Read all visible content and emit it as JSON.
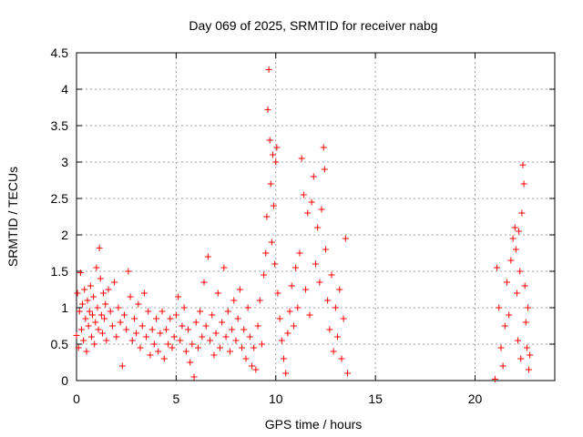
{
  "chart_data": {
    "type": "scatter",
    "title": "Day 069 of 2025, SRMTID for receiver nabg",
    "xlabel": "GPS time / hours",
    "ylabel": "SRMTID / TECUs",
    "xlim": [
      0,
      24
    ],
    "ylim": [
      0,
      4.5
    ],
    "xticks": [
      0,
      5,
      10,
      15,
      20
    ],
    "yticks": [
      0,
      0.5,
      1,
      1.5,
      2,
      2.5,
      3,
      3.5,
      4,
      4.5
    ],
    "grid": true,
    "marker": "plus",
    "color": "#ff0000",
    "series": [
      {
        "values": [
          [
            0.0,
            0.62
          ],
          [
            0.05,
            1.2
          ],
          [
            0.1,
            0.45
          ],
          [
            0.15,
            0.95
          ],
          [
            0.2,
            1.48
          ],
          [
            0.25,
            0.7
          ],
          [
            0.3,
            1.05
          ],
          [
            0.35,
            0.55
          ],
          [
            0.4,
            1.25
          ],
          [
            0.45,
            0.85
          ],
          [
            0.5,
            0.4
          ],
          [
            0.55,
            1.1
          ],
          [
            0.6,
            0.75
          ],
          [
            0.65,
            0.95
          ],
          [
            0.7,
            1.3
          ],
          [
            0.75,
            0.6
          ],
          [
            0.8,
            0.9
          ],
          [
            0.85,
            1.15
          ],
          [
            0.9,
            0.5
          ],
          [
            0.95,
            0.8
          ],
          [
            1.0,
            1.55
          ],
          [
            1.05,
            1.0
          ],
          [
            1.1,
            0.7
          ],
          [
            1.15,
            1.82
          ],
          [
            1.2,
            1.4
          ],
          [
            1.25,
            0.9
          ],
          [
            1.3,
            0.65
          ],
          [
            1.35,
            1.2
          ],
          [
            1.4,
            0.85
          ],
          [
            1.45,
            1.05
          ],
          [
            1.5,
            0.55
          ],
          [
            1.6,
            1.25
          ],
          [
            1.7,
            0.95
          ],
          [
            1.8,
            0.75
          ],
          [
            1.9,
            1.35
          ],
          [
            2.0,
            0.6
          ],
          [
            2.1,
            1.0
          ],
          [
            2.2,
            0.8
          ],
          [
            2.3,
            0.2
          ],
          [
            2.4,
            0.9
          ],
          [
            2.5,
            0.7
          ],
          [
            2.6,
            1.5
          ],
          [
            2.7,
            1.15
          ],
          [
            2.8,
            0.55
          ],
          [
            2.9,
            0.85
          ],
          [
            3.0,
            0.65
          ],
          [
            3.1,
            1.05
          ],
          [
            3.2,
            0.45
          ],
          [
            3.3,
            0.75
          ],
          [
            3.4,
            1.2
          ],
          [
            3.5,
            0.6
          ],
          [
            3.6,
            0.95
          ],
          [
            3.7,
            0.35
          ],
          [
            3.8,
            0.7
          ],
          [
            3.9,
            0.5
          ],
          [
            4.0,
            0.85
          ],
          [
            4.1,
            0.4
          ],
          [
            4.2,
            0.65
          ],
          [
            4.3,
            0.95
          ],
          [
            4.4,
            0.3
          ],
          [
            4.5,
            0.7
          ],
          [
            4.6,
            0.5
          ],
          [
            4.7,
            0.85
          ],
          [
            4.8,
            0.45
          ],
          [
            4.9,
            0.6
          ],
          [
            5.0,
            0.9
          ],
          [
            5.1,
            1.15
          ],
          [
            5.2,
            0.55
          ],
          [
            5.3,
            0.75
          ],
          [
            5.4,
            1.0
          ],
          [
            5.5,
            0.4
          ],
          [
            5.6,
            0.7
          ],
          [
            5.7,
            0.25
          ],
          [
            5.8,
            0.5
          ],
          [
            5.9,
            0.05
          ],
          [
            6.0,
            0.8
          ],
          [
            6.1,
            0.45
          ],
          [
            6.2,
            0.95
          ],
          [
            6.3,
            0.6
          ],
          [
            6.4,
            1.35
          ],
          [
            6.5,
            0.75
          ],
          [
            6.6,
            1.7
          ],
          [
            6.7,
            0.55
          ],
          [
            6.8,
            0.9
          ],
          [
            6.9,
            0.35
          ],
          [
            7.0,
            0.65
          ],
          [
            7.1,
            1.2
          ],
          [
            7.2,
            0.45
          ],
          [
            7.3,
            0.8
          ],
          [
            7.4,
            1.55
          ],
          [
            7.5,
            0.6
          ],
          [
            7.6,
            0.95
          ],
          [
            7.7,
            0.4
          ],
          [
            7.8,
            0.7
          ],
          [
            7.9,
            1.1
          ],
          [
            8.0,
            0.55
          ],
          [
            8.1,
            0.85
          ],
          [
            8.2,
            1.25
          ],
          [
            8.3,
            0.45
          ],
          [
            8.4,
            0.7
          ],
          [
            8.5,
            0.3
          ],
          [
            8.6,
            1.0
          ],
          [
            8.7,
            0.6
          ],
          [
            8.8,
            0.2
          ],
          [
            8.9,
            0.45
          ],
          [
            9.0,
            0.15
          ],
          [
            9.1,
            0.75
          ],
          [
            9.2,
            1.1
          ],
          [
            9.3,
            0.5
          ],
          [
            9.4,
            1.45
          ],
          [
            9.5,
            1.75
          ],
          [
            9.55,
            2.25
          ],
          [
            9.6,
            3.72
          ],
          [
            9.65,
            4.27
          ],
          [
            9.7,
            3.3
          ],
          [
            9.75,
            2.7
          ],
          [
            9.8,
            1.9
          ],
          [
            9.85,
            3.1
          ],
          [
            9.9,
            2.4
          ],
          [
            9.95,
            1.6
          ],
          [
            10.0,
            3.0
          ],
          [
            10.05,
            3.2
          ],
          [
            10.1,
            1.2
          ],
          [
            10.2,
            0.85
          ],
          [
            10.3,
            0.55
          ],
          [
            10.4,
            0.3
          ],
          [
            10.5,
            0.1
          ],
          [
            10.6,
            0.65
          ],
          [
            10.7,
            0.95
          ],
          [
            10.8,
            1.3
          ],
          [
            10.9,
            0.75
          ],
          [
            11.0,
            1.55
          ],
          [
            11.1,
            1.0
          ],
          [
            11.2,
            1.75
          ],
          [
            11.3,
            3.05
          ],
          [
            11.4,
            2.55
          ],
          [
            11.5,
            1.25
          ],
          [
            11.6,
            2.3
          ],
          [
            11.7,
            0.9
          ],
          [
            11.8,
            2.45
          ],
          [
            11.9,
            2.8
          ],
          [
            12.0,
            1.6
          ],
          [
            12.1,
            2.1
          ],
          [
            12.2,
            1.35
          ],
          [
            12.3,
            2.35
          ],
          [
            12.4,
            3.2
          ],
          [
            12.45,
            2.9
          ],
          [
            12.5,
            1.8
          ],
          [
            12.6,
            1.1
          ],
          [
            12.7,
            0.7
          ],
          [
            12.8,
            1.45
          ],
          [
            12.9,
            0.4
          ],
          [
            13.0,
            1.0
          ],
          [
            13.1,
            0.6
          ],
          [
            13.2,
            1.25
          ],
          [
            13.3,
            0.3
          ],
          [
            13.4,
            0.85
          ],
          [
            13.5,
            1.95
          ],
          [
            13.6,
            0.1
          ],
          [
            21.0,
            0.02
          ],
          [
            21.1,
            1.55
          ],
          [
            21.2,
            1.0
          ],
          [
            21.3,
            0.45
          ],
          [
            21.4,
            0.2
          ],
          [
            21.5,
            0.75
          ],
          [
            21.6,
            1.35
          ],
          [
            21.7,
            0.9
          ],
          [
            21.8,
            1.65
          ],
          [
            21.9,
            1.95
          ],
          [
            22.0,
            2.1
          ],
          [
            22.05,
            1.8
          ],
          [
            22.1,
            1.2
          ],
          [
            22.15,
            0.55
          ],
          [
            22.2,
            2.05
          ],
          [
            22.25,
            1.5
          ],
          [
            22.3,
            0.3
          ],
          [
            22.35,
            2.3
          ],
          [
            22.4,
            2.96
          ],
          [
            22.45,
            2.7
          ],
          [
            22.5,
            1.3
          ],
          [
            22.55,
            0.8
          ],
          [
            22.6,
            0.45
          ],
          [
            22.65,
            1.0
          ],
          [
            22.7,
            0.15
          ],
          [
            22.75,
            0.35
          ]
        ]
      }
    ]
  }
}
